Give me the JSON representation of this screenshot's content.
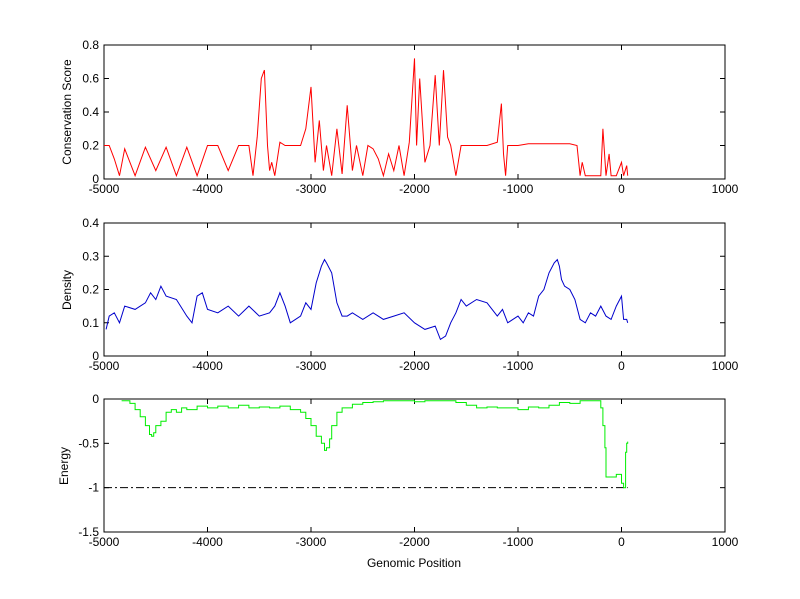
{
  "chart_data": [
    {
      "type": "line",
      "ylabel": "Conservation Score",
      "xlabel": "",
      "xlim": [
        -5000,
        1000
      ],
      "ylim": [
        0,
        0.8
      ],
      "xticks": [
        -5000,
        -4000,
        -3000,
        -2000,
        -1000,
        0,
        1000
      ],
      "yticks": [
        0,
        0.2,
        0.4,
        0.6,
        0.8
      ],
      "xtick_labels": [
        "-5000",
        "-4000",
        "-3000",
        "-2000",
        "-1000",
        "0",
        "1000"
      ],
      "ytick_labels": [
        "0",
        "0.2",
        "0.4",
        "0.6",
        "0.8"
      ],
      "color": "#ff0000",
      "series": [
        {
          "x": [
            -5000,
            -4950,
            -4900,
            -4850,
            -4800,
            -4700,
            -4600,
            -4500,
            -4400,
            -4300,
            -4200,
            -4100,
            -4000,
            -3900,
            -3800,
            -3700,
            -3600,
            -3560,
            -3520,
            -3480,
            -3450,
            -3420,
            -3400,
            -3380,
            -3350,
            -3300,
            -3250,
            -3200,
            -3100,
            -3050,
            -3000,
            -2960,
            -2920,
            -2880,
            -2850,
            -2800,
            -2750,
            -2700,
            -2650,
            -2600,
            -2560,
            -2500,
            -2450,
            -2400,
            -2350,
            -2300,
            -2250,
            -2200,
            -2150,
            -2100,
            -2050,
            -2000,
            -1980,
            -1950,
            -1900,
            -1850,
            -1800,
            -1760,
            -1720,
            -1680,
            -1650,
            -1600,
            -1550,
            -1500,
            -1400,
            -1300,
            -1200,
            -1160,
            -1140,
            -1120,
            -1100,
            -1000,
            -900,
            -800,
            -700,
            -600,
            -500,
            -430,
            -400,
            -380,
            -350,
            -300,
            -250,
            -200,
            -180,
            -150,
            -120,
            -100,
            -50,
            0,
            20,
            50,
            60
          ],
          "y": [
            0.2,
            0.2,
            0.12,
            0.02,
            0.18,
            0.02,
            0.19,
            0.05,
            0.19,
            0.02,
            0.19,
            0.02,
            0.2,
            0.2,
            0.05,
            0.2,
            0.2,
            0.02,
            0.25,
            0.6,
            0.65,
            0.2,
            0.05,
            0.1,
            0.02,
            0.22,
            0.2,
            0.2,
            0.2,
            0.3,
            0.55,
            0.1,
            0.35,
            0.05,
            0.2,
            0.02,
            0.3,
            0.03,
            0.44,
            0.05,
            0.2,
            0.02,
            0.2,
            0.18,
            0.12,
            0.02,
            0.15,
            0.05,
            0.2,
            0.02,
            0.22,
            0.72,
            0.2,
            0.6,
            0.1,
            0.2,
            0.62,
            0.2,
            0.65,
            0.25,
            0.2,
            0.02,
            0.2,
            0.2,
            0.2,
            0.2,
            0.22,
            0.45,
            0.15,
            0.02,
            0.2,
            0.2,
            0.21,
            0.21,
            0.21,
            0.21,
            0.21,
            0.2,
            0.02,
            0.1,
            0.02,
            0.02,
            0.02,
            0.02,
            0.3,
            0.02,
            0.15,
            0.02,
            0.02,
            0.1,
            0.02,
            0.08,
            0.02
          ]
        }
      ]
    },
    {
      "type": "line",
      "ylabel": "Density",
      "xlabel": "",
      "xlim": [
        -5000,
        1000
      ],
      "ylim": [
        0,
        0.4
      ],
      "xticks": [
        -5000,
        -4000,
        -3000,
        -2000,
        -1000,
        0,
        1000
      ],
      "yticks": [
        0,
        0.1,
        0.2,
        0.3,
        0.4
      ],
      "xtick_labels": [
        "-5000",
        "-4000",
        "-3000",
        "-2000",
        "-1000",
        "0",
        "1000"
      ],
      "ytick_labels": [
        "0",
        "0.1",
        "0.2",
        "0.3",
        "0.4"
      ],
      "color": "#0000cc",
      "series": [
        {
          "x": [
            -4980,
            -4950,
            -4900,
            -4850,
            -4800,
            -4700,
            -4600,
            -4550,
            -4500,
            -4450,
            -4400,
            -4300,
            -4200,
            -4150,
            -4100,
            -4050,
            -4000,
            -3900,
            -3800,
            -3700,
            -3600,
            -3500,
            -3400,
            -3350,
            -3300,
            -3250,
            -3200,
            -3100,
            -3050,
            -3000,
            -2950,
            -2900,
            -2870,
            -2850,
            -2800,
            -2750,
            -2700,
            -2650,
            -2600,
            -2500,
            -2400,
            -2300,
            -2200,
            -2100,
            -2000,
            -1900,
            -1800,
            -1750,
            -1700,
            -1650,
            -1600,
            -1550,
            -1500,
            -1400,
            -1300,
            -1200,
            -1150,
            -1100,
            -1000,
            -950,
            -900,
            -850,
            -800,
            -750,
            -700,
            -650,
            -620,
            -600,
            -580,
            -550,
            -500,
            -450,
            -400,
            -350,
            -300,
            -250,
            -200,
            -150,
            -100,
            -50,
            0,
            20,
            50,
            60
          ],
          "y": [
            0.08,
            0.12,
            0.13,
            0.1,
            0.15,
            0.14,
            0.16,
            0.19,
            0.17,
            0.21,
            0.18,
            0.17,
            0.12,
            0.1,
            0.18,
            0.19,
            0.14,
            0.13,
            0.15,
            0.12,
            0.15,
            0.12,
            0.13,
            0.15,
            0.19,
            0.15,
            0.1,
            0.12,
            0.16,
            0.14,
            0.22,
            0.27,
            0.29,
            0.28,
            0.25,
            0.16,
            0.12,
            0.12,
            0.13,
            0.11,
            0.13,
            0.11,
            0.12,
            0.13,
            0.1,
            0.08,
            0.09,
            0.05,
            0.06,
            0.1,
            0.13,
            0.17,
            0.15,
            0.17,
            0.16,
            0.12,
            0.14,
            0.1,
            0.12,
            0.1,
            0.13,
            0.12,
            0.18,
            0.2,
            0.25,
            0.28,
            0.29,
            0.27,
            0.23,
            0.21,
            0.2,
            0.17,
            0.11,
            0.1,
            0.13,
            0.12,
            0.15,
            0.12,
            0.11,
            0.15,
            0.18,
            0.11,
            0.11,
            0.1
          ]
        }
      ]
    },
    {
      "type": "line",
      "ylabel": "Energy",
      "xlabel": "Genomic Position",
      "xlim": [
        -5000,
        1000
      ],
      "ylim": [
        -1.5,
        0
      ],
      "xticks": [
        -5000,
        -4000,
        -3000,
        -2000,
        -1000,
        0,
        1000
      ],
      "yticks": [
        -1.5,
        -1,
        -0.5,
        0
      ],
      "xtick_labels": [
        "-5000",
        "-4000",
        "-3000",
        "-2000",
        "-1000",
        "0",
        "1000"
      ],
      "ytick_labels": [
        "-1.5",
        "-1",
        "-0.5",
        "0"
      ],
      "color": "#00ee00",
      "reference_line": {
        "y": -1,
        "x": [
          -5000,
          60
        ],
        "color": "#000000",
        "style": "dash-dot"
      },
      "series": [
        {
          "x": [
            -4830,
            -4800,
            -4750,
            -4700,
            -4650,
            -4600,
            -4560,
            -4540,
            -4520,
            -4500,
            -4450,
            -4400,
            -4350,
            -4300,
            -4250,
            -4200,
            -4100,
            -4000,
            -3900,
            -3800,
            -3700,
            -3600,
            -3500,
            -3400,
            -3300,
            -3200,
            -3100,
            -3050,
            -3000,
            -2950,
            -2900,
            -2870,
            -2850,
            -2820,
            -2800,
            -2750,
            -2700,
            -2600,
            -2500,
            -2400,
            -2300,
            -2200,
            -2100,
            -2000,
            -1900,
            -1800,
            -1700,
            -1600,
            -1500,
            -1400,
            -1300,
            -1200,
            -1100,
            -1000,
            -900,
            -800,
            -700,
            -600,
            -500,
            -400,
            -300,
            -250,
            -200,
            -180,
            -160,
            -150,
            -100,
            -50,
            0,
            20,
            40,
            50,
            60
          ],
          "y": [
            -0.02,
            -0.02,
            -0.05,
            -0.12,
            -0.2,
            -0.3,
            -0.4,
            -0.42,
            -0.38,
            -0.3,
            -0.25,
            -0.15,
            -0.12,
            -0.15,
            -0.1,
            -0.12,
            -0.08,
            -0.1,
            -0.08,
            -0.1,
            -0.07,
            -0.1,
            -0.09,
            -0.1,
            -0.08,
            -0.12,
            -0.15,
            -0.22,
            -0.3,
            -0.42,
            -0.5,
            -0.58,
            -0.55,
            -0.45,
            -0.3,
            -0.15,
            -0.1,
            -0.06,
            -0.04,
            -0.03,
            -0.02,
            -0.02,
            -0.02,
            -0.03,
            -0.02,
            -0.02,
            -0.02,
            -0.04,
            -0.07,
            -0.1,
            -0.09,
            -0.1,
            -0.1,
            -0.12,
            -0.09,
            -0.1,
            -0.07,
            -0.04,
            -0.05,
            -0.02,
            -0.02,
            -0.02,
            -0.1,
            -0.3,
            -0.55,
            -0.88,
            -0.88,
            -0.85,
            -0.95,
            -1.0,
            -0.6,
            -0.5,
            -0.48
          ]
        }
      ]
    }
  ]
}
